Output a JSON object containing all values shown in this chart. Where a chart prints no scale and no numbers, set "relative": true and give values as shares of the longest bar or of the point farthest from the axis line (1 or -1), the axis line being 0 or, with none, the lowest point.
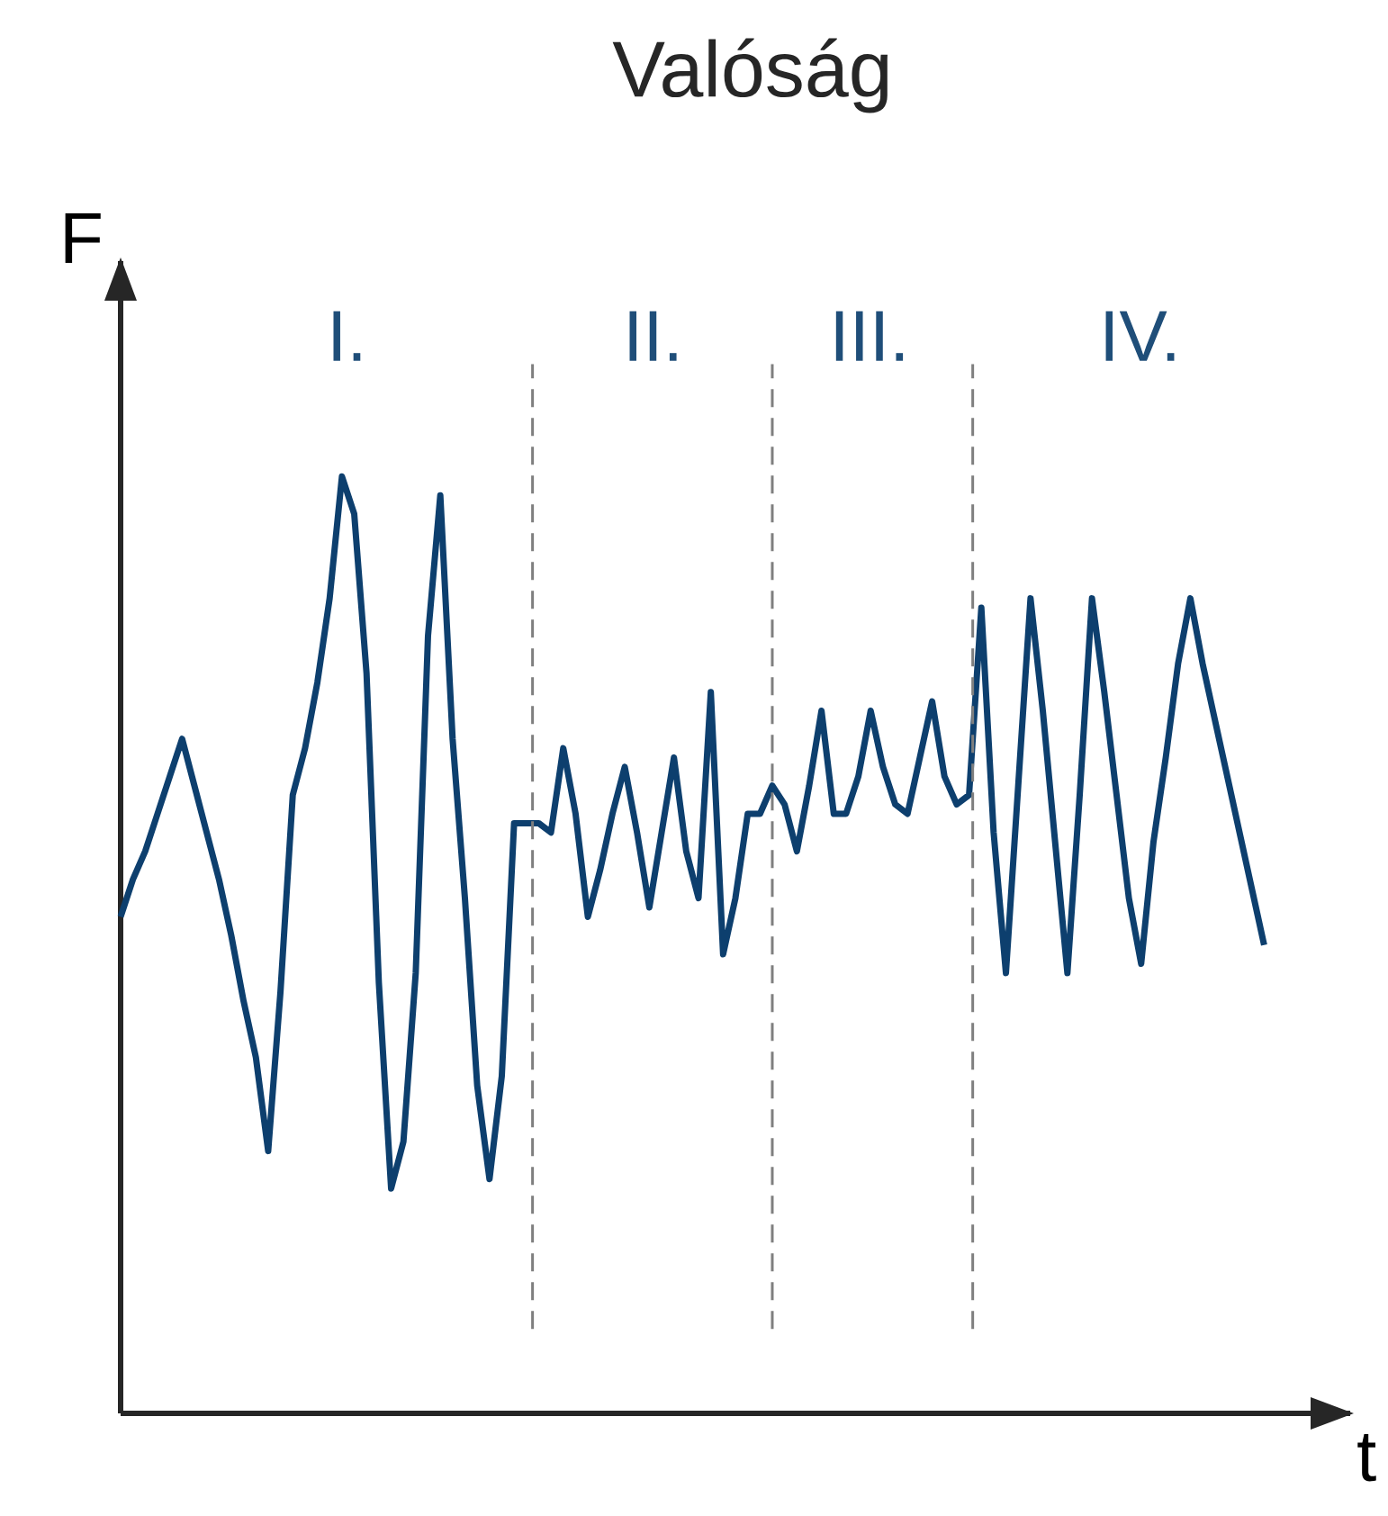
{
  "chart_data": {
    "type": "line",
    "title": "Valóság",
    "xlabel": "t",
    "ylabel": "F",
    "relative": true,
    "tick_labels": false,
    "marker": "none",
    "line_style": "solid",
    "categories": [
      null,
      null,
      null,
      null,
      null,
      null,
      null,
      null,
      null,
      null,
      null,
      null,
      null,
      null,
      null,
      null,
      null,
      null,
      null,
      null,
      null,
      null,
      null,
      null,
      null,
      null,
      null,
      null,
      null,
      null,
      null,
      null,
      null,
      null,
      null,
      null,
      null,
      null,
      null,
      null,
      null,
      null,
      null,
      null,
      null,
      null,
      null,
      null,
      null,
      null,
      null,
      null,
      null,
      null,
      null,
      null,
      null,
      null,
      null,
      null,
      null,
      null,
      null,
      null,
      null,
      null,
      null,
      null,
      null,
      null,
      null,
      null,
      null,
      null,
      null,
      null,
      null,
      null,
      null,
      null,
      null,
      null,
      null,
      null,
      null,
      null,
      null,
      null,
      null,
      null,
      null,
      null,
      null,
      null
    ],
    "series": [
      {
        "color": "#0d3f6e",
        "values": [
          0.53,
          0.57,
          0.6,
          0.64,
          0.68,
          0.72,
          0.67,
          0.62,
          0.57,
          0.51,
          0.44,
          0.38,
          0.28,
          0.45,
          0.66,
          0.71,
          0.78,
          0.87,
          1.0,
          0.96,
          0.79,
          0.46,
          0.24,
          0.29,
          0.47,
          0.83,
          0.98,
          0.72,
          0.55,
          0.35,
          0.25,
          0.36,
          0.63,
          0.63,
          0.63,
          0.62,
          0.71,
          0.64,
          0.53,
          0.58,
          0.64,
          0.69,
          0.62,
          0.54,
          0.62,
          0.7,
          0.6,
          0.55,
          0.77,
          0.49,
          0.55,
          0.64,
          0.64,
          0.67,
          0.65,
          0.6,
          0.67,
          0.75,
          0.64,
          0.64,
          0.68,
          0.75,
          0.69,
          0.65,
          0.64,
          0.7,
          0.76,
          0.68,
          0.65,
          0.66,
          0.86,
          0.62,
          0.47,
          0.67,
          0.87,
          0.75,
          0.61,
          0.47,
          0.66,
          0.87,
          0.77,
          0.66,
          0.55,
          0.48,
          0.61,
          0.7,
          0.8,
          0.87,
          0.8,
          0.74,
          0.68,
          0.62,
          0.56,
          0.5
        ]
      }
    ],
    "annotations": [
      "I.",
      "II.",
      "III.",
      "IV."
    ]
  }
}
